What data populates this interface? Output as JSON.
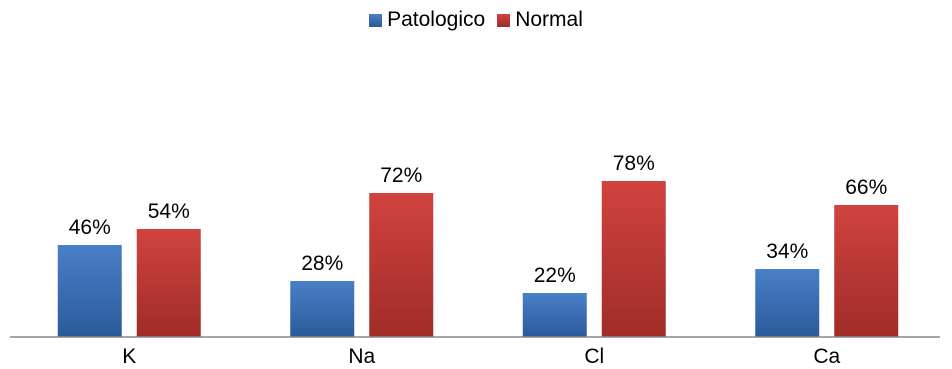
{
  "chart_data": {
    "type": "bar",
    "categories": [
      "K",
      "Na",
      "Cl",
      "Ca"
    ],
    "series": [
      {
        "name": "Patologico",
        "values": [
          46,
          28,
          22,
          34
        ],
        "labels": [
          "46%",
          "28%",
          "22%",
          "34%"
        ],
        "color_top": "#4a80c8",
        "color_bottom": "#2a5a9a"
      },
      {
        "name": "Normal",
        "values": [
          54,
          72,
          78,
          66
        ],
        "labels": [
          "54%",
          "72%",
          "78%",
          "66%"
        ],
        "color_top": "#d0433f",
        "color_bottom": "#a02c28"
      }
    ],
    "title": "",
    "xlabel": "",
    "ylabel": "",
    "ylim": [
      0,
      100
    ],
    "grid": false,
    "legend_position": "top"
  }
}
